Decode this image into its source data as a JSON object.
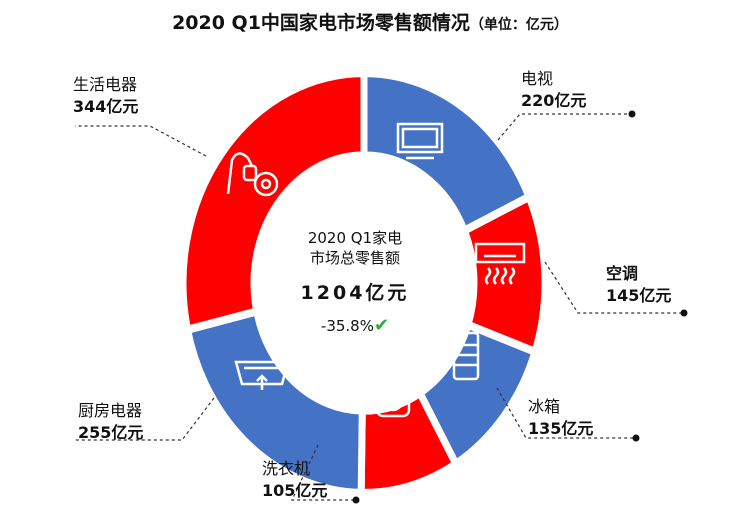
{
  "chart_data": {
    "type": "pie",
    "donut": true,
    "title": "2020 Q1中国家电市场零售额情况",
    "unit_note": "（单位：亿元）",
    "categories": [
      "电视",
      "空调",
      "冰箱",
      "洗衣机",
      "厨房电器",
      "生活电器"
    ],
    "values": [
      220,
      145,
      135,
      105,
      255,
      344
    ],
    "value_labels": [
      "220亿元",
      "145亿元",
      "135亿元",
      "105亿元",
      "255亿元",
      "344亿元"
    ],
    "colors": [
      "#4472c4",
      "#ff0000",
      "#4472c4",
      "#ff0000",
      "#4472c4",
      "#ff0000"
    ],
    "icons": [
      "tv-icon",
      "air-conditioner-icon",
      "refrigerator-icon",
      "washing-machine-icon",
      "range-hood-icon",
      "vacuum-cleaner-icon"
    ],
    "center": {
      "line1": "2020 Q1家电",
      "line2": "市场总零售额",
      "total": "1204亿元",
      "change": "-35.8%",
      "change_icon": "green-check-icon"
    }
  }
}
